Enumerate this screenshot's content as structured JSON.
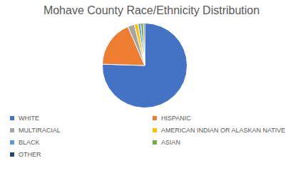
{
  "chart_data": {
    "type": "pie",
    "title": "Mohave County Race/Ethnicity Distribution",
    "categories": [
      "WHITE",
      "HISPANIC",
      "MULTIRACIAL",
      "AMERICAN INDIAN OR ALASKAN NATIVE",
      "BLACK",
      "ASIAN",
      "OTHER"
    ],
    "values": [
      75.5,
      18,
      2.5,
      1.5,
      1,
      1,
      0.5
    ],
    "colors": [
      "#4472c4",
      "#ed7d31",
      "#a5a5a5",
      "#ffc000",
      "#5b9bd5",
      "#70ad47",
      "#264478"
    ],
    "legend": "bottom"
  }
}
